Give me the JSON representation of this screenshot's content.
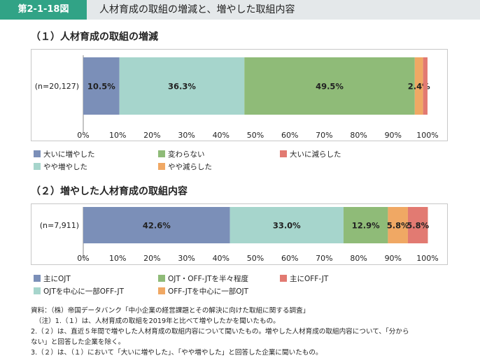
{
  "header": {
    "figure_id": "第2-1-18図",
    "title": "人材育成の取組の増減と、増やした取組内容"
  },
  "chart1": {
    "heading": "（１）人材育成の取組の増減"
  },
  "chart2": {
    "heading": "（２）増やした人材育成の取組内容"
  },
  "notes": {
    "source": "資料：（株）帝国データバンク「中小企業の経営課題とその解決に向けた取組に関する調査」",
    "note1": "（注）1.（１）は、人材育成の取組を2019年と比べて増やしたかを聞いたもの。",
    "note2a": "2.（２）は、直近５年間で増やした人材育成の取組内容について聞いたもの。増やした人材育成の取組内容について、「分から",
    "note2b": "ない」と回答した企業を除く。",
    "note3": "3.（２）は、（１）において「大いに増やした」、「やや増やした」と回答した企業に聞いたもの。"
  },
  "chart_data": [
    {
      "type": "bar",
      "orientation": "horizontal-stacked-100",
      "categories": [
        "(n=20,127)"
      ],
      "series": [
        {
          "name": "大いに増やした",
          "values": [
            10.5
          ],
          "label": "10.5%",
          "color": "#7b8fb8"
        },
        {
          "name": "やや増やした",
          "values": [
            36.3
          ],
          "label": "36.3%",
          "color": "#a6d5cc"
        },
        {
          "name": "変わらない",
          "values": [
            49.5
          ],
          "label": "49.5%",
          "color": "#8fbb78"
        },
        {
          "name": "やや減らした",
          "values": [
            2.4
          ],
          "label": "2.4%",
          "color": "#f0a864"
        },
        {
          "name": "大いに減らした",
          "values": [
            1.3
          ],
          "label": "",
          "color": "#e27a72"
        }
      ],
      "xticks": [
        "0%",
        "10%",
        "20%",
        "30%",
        "40%",
        "50%",
        "60%",
        "70%",
        "80%",
        "90%",
        "100%"
      ],
      "xlim": [
        0,
        100
      ],
      "legend": [
        [
          {
            "name": "大いに増やした",
            "color": "#7b8fb8"
          },
          {
            "name": "変わらない",
            "color": "#8fbb78"
          },
          {
            "name": "大いに減らした",
            "color": "#e27a72"
          }
        ],
        [
          {
            "name": "やや増やした",
            "color": "#a6d5cc"
          },
          {
            "name": "やや減らした",
            "color": "#f0a864"
          }
        ]
      ]
    },
    {
      "type": "bar",
      "orientation": "horizontal-stacked-100",
      "categories": [
        "(n=7,911)"
      ],
      "series": [
        {
          "name": "主にOJT",
          "values": [
            42.6
          ],
          "label": "42.6%",
          "color": "#7b8fb8"
        },
        {
          "name": "OJTを中心に一部OFF-JT",
          "values": [
            33.0
          ],
          "label": "33.0%",
          "color": "#a6d5cc"
        },
        {
          "name": "OJT・OFF-JTを半々程度",
          "values": [
            12.9
          ],
          "label": "12.9%",
          "color": "#8fbb78"
        },
        {
          "name": "OFF-JTを中心に一部OJT",
          "values": [
            5.8
          ],
          "label": "5.8%",
          "color": "#f0a864"
        },
        {
          "name": "主にOFF-JT",
          "values": [
            5.8
          ],
          "label": "5.8%",
          "color": "#e27a72"
        }
      ],
      "xticks": [
        "0%",
        "10%",
        "20%",
        "30%",
        "40%",
        "50%",
        "60%",
        "70%",
        "80%",
        "90%",
        "100%"
      ],
      "xlim": [
        0,
        100
      ],
      "legend": [
        [
          {
            "name": "主にOJT",
            "color": "#7b8fb8"
          },
          {
            "name": "OJT・OFF-JTを半々程度",
            "color": "#8fbb78"
          },
          {
            "name": "主にOFF-JT",
            "color": "#e27a72"
          }
        ],
        [
          {
            "name": "OJTを中心に一部OFF-JT",
            "color": "#a6d5cc"
          },
          {
            "name": "OFF-JTを中心に一部OJT",
            "color": "#f0a864"
          }
        ]
      ]
    }
  ]
}
